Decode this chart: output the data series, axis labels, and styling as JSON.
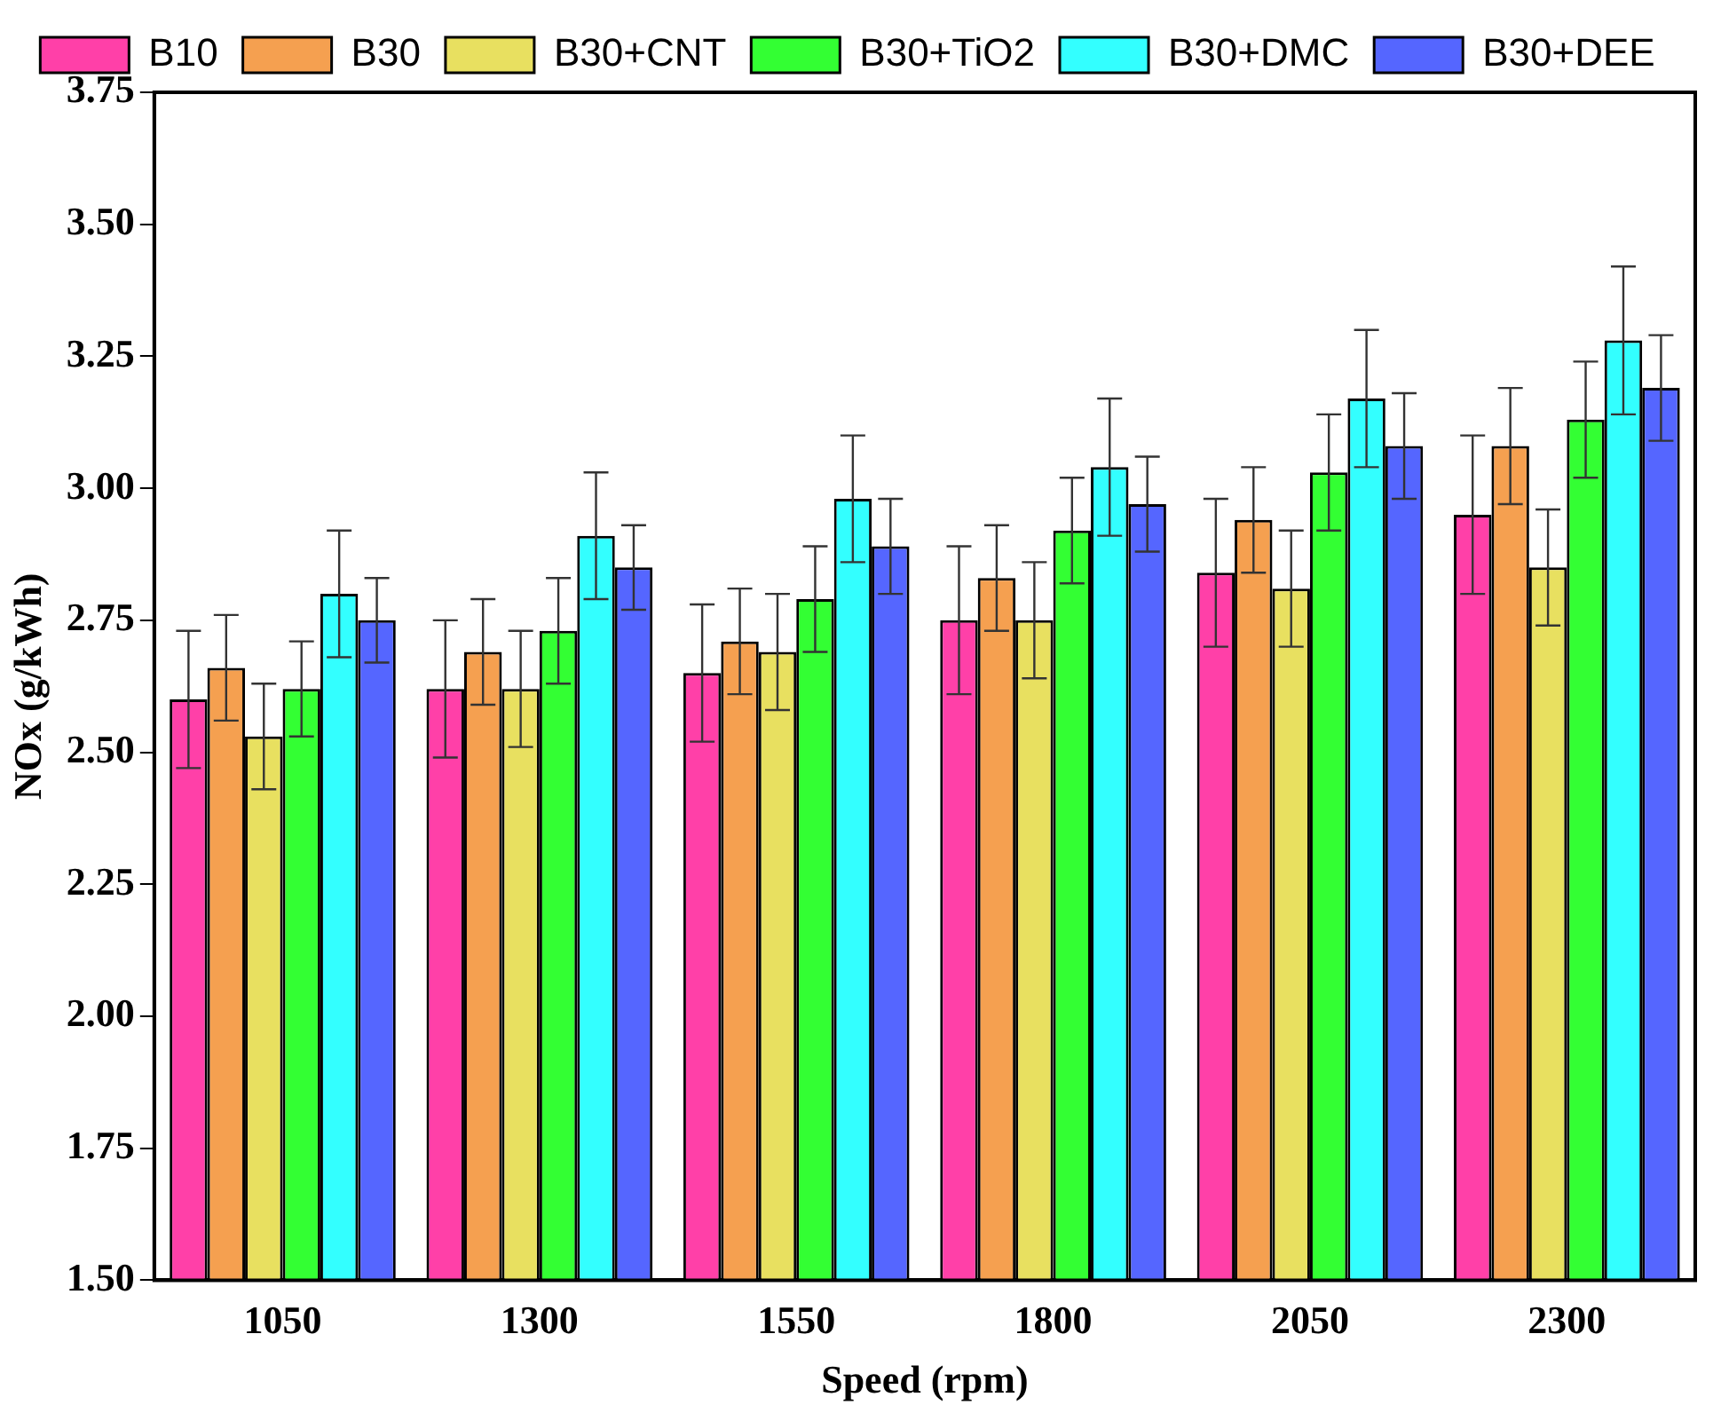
{
  "chart_data": {
    "type": "bar",
    "xlabel": "Speed (rpm)",
    "ylabel": "NOx (g/kWh)",
    "categories": [
      "1050",
      "1300",
      "1550",
      "1800",
      "2050",
      "2300"
    ],
    "ylim": [
      1.5,
      3.75
    ],
    "yticks": [
      {
        "value": 1.5,
        "label": "1.50"
      },
      {
        "value": 1.75,
        "label": "1.75"
      },
      {
        "value": 2,
        "label": "2.00"
      },
      {
        "value": 2.25,
        "label": "2.25"
      },
      {
        "value": 2.5,
        "label": "2.50"
      },
      {
        "value": 2.75,
        "label": "2.75"
      },
      {
        "value": 3,
        "label": "3.00"
      },
      {
        "value": 3.25,
        "label": "3.25"
      },
      {
        "value": 3.5,
        "label": "3.50"
      },
      {
        "value": 3.75,
        "label": "3.75"
      }
    ],
    "grid": false,
    "legend": "top",
    "series": [
      {
        "name": "B10",
        "color": "#ff40a8",
        "values": [
          2.6,
          2.62,
          2.65,
          2.75,
          2.84,
          2.95
        ],
        "errors": [
          0.13,
          0.13,
          0.13,
          0.14,
          0.14,
          0.15
        ]
      },
      {
        "name": "B30",
        "color": "#f5a050",
        "values": [
          2.66,
          2.69,
          2.71,
          2.83,
          2.94,
          3.08
        ],
        "errors": [
          0.1,
          0.1,
          0.1,
          0.1,
          0.1,
          0.11
        ]
      },
      {
        "name": "B30+CNT",
        "color": "#e8e060",
        "values": [
          2.53,
          2.62,
          2.69,
          2.75,
          2.81,
          2.85
        ],
        "errors": [
          0.1,
          0.11,
          0.11,
          0.11,
          0.11,
          0.11
        ]
      },
      {
        "name": "B30+TiO2",
        "color": "#33ff33",
        "values": [
          2.62,
          2.73,
          2.79,
          2.92,
          3.03,
          3.13
        ],
        "errors": [
          0.09,
          0.1,
          0.1,
          0.1,
          0.11,
          0.11
        ]
      },
      {
        "name": "B30+DMC",
        "color": "#33ffff",
        "values": [
          2.8,
          2.91,
          2.98,
          3.04,
          3.17,
          3.28
        ],
        "errors": [
          0.12,
          0.12,
          0.12,
          0.13,
          0.13,
          0.14
        ]
      },
      {
        "name": "B30+DEE",
        "color": "#5566ff",
        "values": [
          2.75,
          2.85,
          2.89,
          2.97,
          3.08,
          3.19
        ],
        "errors": [
          0.08,
          0.08,
          0.09,
          0.09,
          0.1,
          0.1
        ]
      }
    ]
  }
}
